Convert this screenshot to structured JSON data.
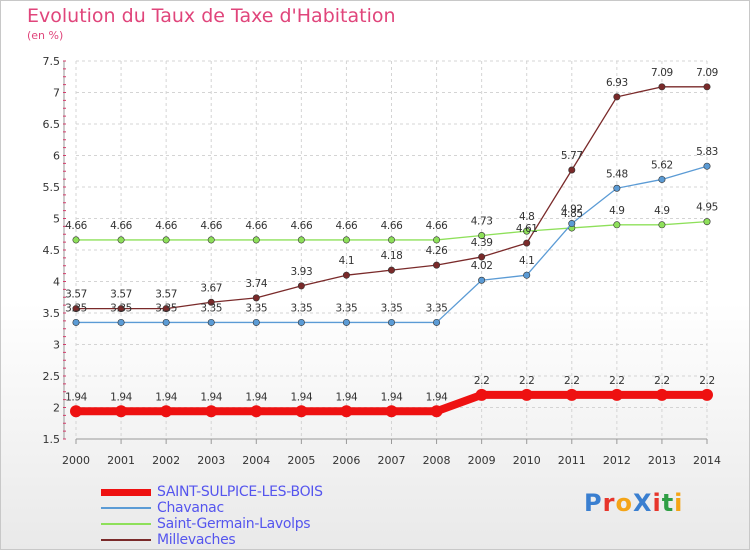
{
  "header": {
    "title": "Evolution du Taux de Taxe d'Habitation",
    "unit": "(en %)"
  },
  "brand": {
    "text": "ProXiti",
    "colors": [
      "#3a7fd0",
      "#e7352b",
      "#f4a416",
      "#3a7fd0",
      "#e7352b",
      "#2f9e44",
      "#f4a416"
    ]
  },
  "chart_data": {
    "type": "line",
    "title": "Evolution du Taux de Taxe d'Habitation",
    "ylabel": "(en %)",
    "xlabel": "",
    "x": [
      "2000",
      "2001",
      "2002",
      "2003",
      "2004",
      "2005",
      "2006",
      "2007",
      "2008",
      "2009",
      "2010",
      "2011",
      "2012",
      "2013",
      "2014"
    ],
    "ylim": [
      1.5,
      7.5
    ],
    "yticks": [
      "1.5",
      "2",
      "2.5",
      "3",
      "3.5",
      "4",
      "4.5",
      "5",
      "5.5",
      "6",
      "6.5",
      "7",
      "7.5"
    ],
    "grid": true,
    "legend_position": "bottom-left",
    "series": [
      {
        "name": "SAINT-SULPICE-LES-BOIS",
        "color": "#ee1111",
        "labelColor": "#5555ee",
        "emphasis": true,
        "values": [
          1.94,
          1.94,
          1.94,
          1.94,
          1.94,
          1.94,
          1.94,
          1.94,
          1.94,
          2.2,
          2.2,
          2.2,
          2.2,
          2.2,
          2.2
        ],
        "labels": [
          "1.94",
          "1.94",
          "1.94",
          "1.94",
          "1.94",
          "1.94",
          "1.94",
          "1.94",
          "1.94",
          "2.2",
          "2.2",
          "2.2",
          "2.2",
          "2.2",
          "2.2"
        ]
      },
      {
        "name": "Chavanac",
        "color": "#5b9bd5",
        "labelColor": "#5555ee",
        "emphasis": false,
        "values": [
          3.35,
          3.35,
          3.35,
          3.35,
          3.35,
          3.35,
          3.35,
          3.35,
          3.35,
          4.02,
          4.1,
          4.92,
          5.48,
          5.62,
          5.83
        ],
        "labels": [
          "3.35",
          "3.35",
          "3.35",
          "3.35",
          "3.35",
          "3.35",
          "3.35",
          "3.35",
          "3.35",
          "4.02",
          "4.1",
          "4.92",
          "5.48",
          "5.62",
          "5.83"
        ]
      },
      {
        "name": "Saint-Germain-Lavolps",
        "color": "#8ee05a",
        "labelColor": "#5555ee",
        "emphasis": false,
        "values": [
          4.66,
          4.66,
          4.66,
          4.66,
          4.66,
          4.66,
          4.66,
          4.66,
          4.66,
          4.73,
          4.8,
          4.85,
          4.9,
          4.9,
          4.95
        ],
        "labels": [
          "4.66",
          "4.66",
          "4.66",
          "4.66",
          "4.66",
          "4.66",
          "4.66",
          "4.66",
          "4.66",
          "4.73",
          "4.8",
          "4.85",
          "4.9",
          "4.9",
          "4.95"
        ]
      },
      {
        "name": "Millevaches",
        "color": "#7a2a2a",
        "labelColor": "#5555ee",
        "emphasis": false,
        "values": [
          3.57,
          3.57,
          3.57,
          3.67,
          3.74,
          3.93,
          4.1,
          4.18,
          4.26,
          4.39,
          4.61,
          5.77,
          6.93,
          7.09,
          7.09
        ],
        "labels": [
          "3.57",
          "3.57",
          "3.57",
          "3.67",
          "3.74",
          "3.93",
          "4.1",
          "4.18",
          "4.26",
          "4.39",
          "4.61",
          "5.77",
          "6.93",
          "7.09",
          "7.09"
        ]
      }
    ]
  }
}
